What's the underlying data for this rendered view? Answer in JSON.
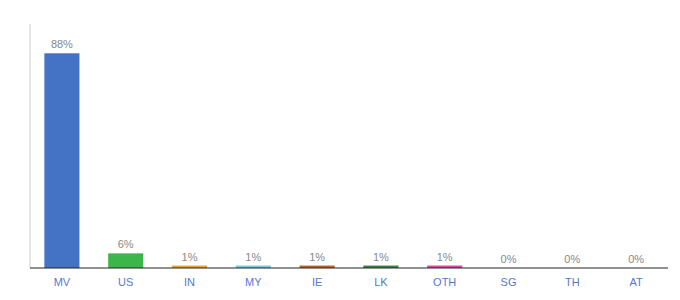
{
  "chart_data": {
    "type": "bar",
    "categories": [
      "MV",
      "US",
      "IN",
      "MY",
      "IE",
      "LK",
      "OTH",
      "SG",
      "TH",
      "AT"
    ],
    "values": [
      88,
      6,
      1,
      1,
      1,
      1,
      1,
      0,
      0,
      0
    ],
    "value_labels": [
      "88%",
      "6%",
      "1%",
      "1%",
      "1%",
      "1%",
      "1%",
      "0%",
      "0%",
      "0%"
    ],
    "colors": [
      "#4472c4",
      "#3cb54a",
      "#f0a030",
      "#70cce0",
      "#c06020",
      "#3a8040",
      "#e040a0",
      "#888888",
      "#888888",
      "#888888"
    ],
    "ylim": [
      0,
      100
    ],
    "tick_labels": "x",
    "data_labels": true,
    "grid": false
  }
}
